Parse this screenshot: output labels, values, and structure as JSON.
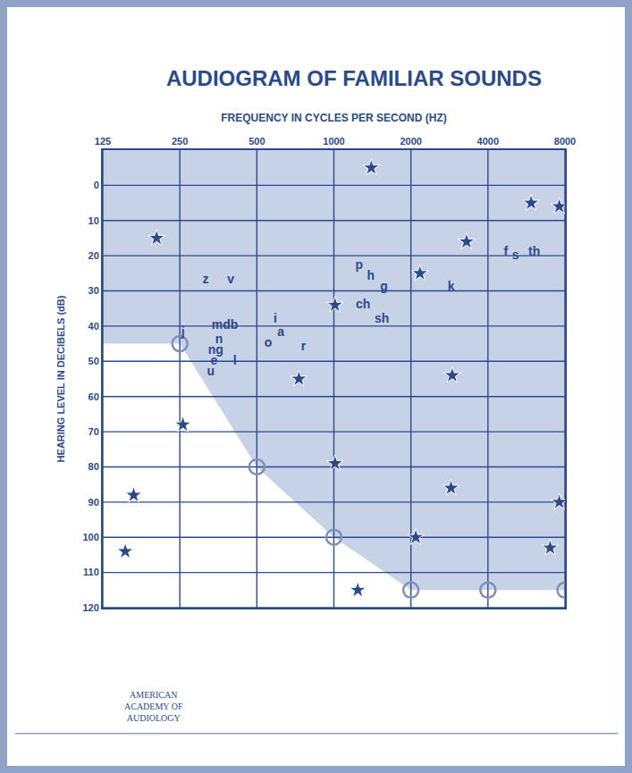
{
  "chart_data": {
    "type": "scatter",
    "title": "AUDIOGRAM OF FAMILIAR SOUNDS",
    "x_label": "FREQUENCY IN CYCLES PER SECOND (HZ)",
    "y_label": "HEARING LEVEL IN DECIBELS (dB)",
    "log": "x",
    "grid": true,
    "xlim": [
      125,
      8000
    ],
    "xticks": [
      125,
      250,
      500,
      1000,
      2000,
      4000,
      8000
    ],
    "ylim": [
      120,
      -10
    ],
    "yticks": [
      0,
      10,
      20,
      30,
      40,
      50,
      60,
      70,
      80,
      90,
      100,
      110,
      120
    ],
    "series": [
      {
        "type": "area",
        "marker": "circle-open",
        "color": "#7d8fb8",
        "x": [
          250,
          500,
          1000,
          2000,
          4000,
          8000
        ],
        "values": [
          45,
          80,
          100,
          115,
          115,
          115
        ]
      },
      {
        "type": "scatter",
        "marker": "star",
        "color": "#2b4a8c",
        "x": [
          203,
          1400,
          5900,
          7600,
          3300,
          2170,
          1010,
          730,
          2900,
          257,
          1010,
          2870,
          7600,
          165,
          153,
          2090,
          1240,
          7000
        ],
        "values": [
          15,
          -5,
          5,
          6,
          16,
          25,
          34,
          55,
          54,
          68,
          79,
          86,
          90,
          88,
          104,
          100,
          115,
          103
        ]
      },
      {
        "type": "text",
        "color": "#2b4a8c",
        "text": [
          "z",
          "v",
          "j",
          "mdb",
          "n",
          "ng",
          "e",
          "l",
          "u",
          "o",
          "a",
          "i",
          "r",
          "p",
          "h",
          "g",
          "ch",
          "sh",
          "k",
          "f",
          "s",
          "th"
        ],
        "x": [
          315,
          395,
          257,
          375,
          356,
          345,
          340,
          410,
          330,
          554,
          620,
          590,
          760,
          1255,
          1395,
          1570,
          1300,
          1540,
          2870,
          4700,
          5130,
          6070
        ],
        "values": [
          27,
          27,
          42,
          40,
          44,
          47,
          50,
          50,
          53,
          45,
          42,
          38,
          46,
          23,
          26,
          29,
          34,
          38,
          29,
          19,
          20,
          19
        ]
      }
    ],
    "annotations": [
      {
        "text": "AMERICAN"
      },
      {
        "text": "ACADEMY OF"
      },
      {
        "text": "AUDIOLOGY"
      }
    ]
  }
}
